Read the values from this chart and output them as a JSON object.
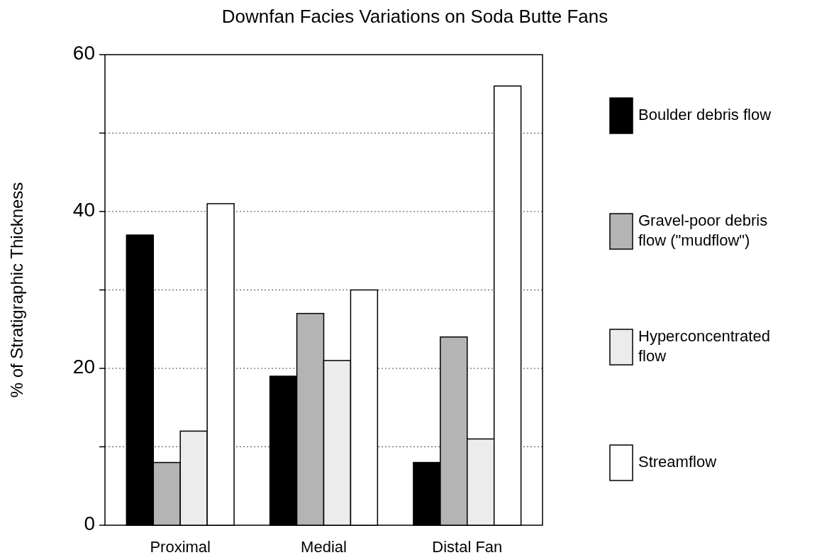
{
  "chart_data": {
    "type": "bar",
    "title": "Downfan Facies Variations on Soda Butte Fans",
    "ylabel": "% of Stratigraphic Thickness",
    "categories": [
      "Proximal",
      "Medial",
      "Distal Fan"
    ],
    "series": [
      {
        "name": "Boulder debris flow",
        "color": "#000000",
        "values": [
          37,
          19,
          8
        ]
      },
      {
        "name": "Gravel-poor debris flow (\"mudflow\")",
        "color": "#b4b4b4",
        "values": [
          8,
          27,
          24
        ]
      },
      {
        "name": "Hyperconcentrated flow",
        "color": "#ececec",
        "values": [
          12,
          21,
          11
        ]
      },
      {
        "name": "Streamflow",
        "color": "#ffffff",
        "values": [
          41,
          30,
          56
        ]
      }
    ],
    "ylim": [
      0,
      60
    ],
    "yticks": [
      0,
      {
        "value": 10,
        "label": null
      },
      20,
      {
        "value": 30,
        "label": null
      },
      40,
      {
        "value": 50,
        "label": null
      },
      60
    ],
    "grid": "y",
    "legend": "right"
  }
}
